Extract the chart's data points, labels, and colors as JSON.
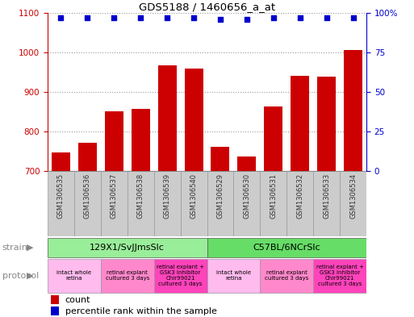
{
  "title": "GDS5188 / 1460656_a_at",
  "samples": [
    "GSM1306535",
    "GSM1306536",
    "GSM1306537",
    "GSM1306538",
    "GSM1306539",
    "GSM1306540",
    "GSM1306529",
    "GSM1306530",
    "GSM1306531",
    "GSM1306532",
    "GSM1306533",
    "GSM1306534"
  ],
  "counts": [
    748,
    771,
    851,
    858,
    968,
    958,
    762,
    738,
    864,
    940,
    938,
    1005
  ],
  "percentiles": [
    97,
    97,
    97,
    97,
    97,
    97,
    96,
    96,
    97,
    97,
    97,
    97
  ],
  "ylim_left": [
    700,
    1100
  ],
  "ylim_right": [
    0,
    100
  ],
  "yticks_left": [
    700,
    800,
    900,
    1000,
    1100
  ],
  "yticks_right": [
    0,
    25,
    50,
    75,
    100
  ],
  "bar_color": "#cc0000",
  "dot_color": "#0000cc",
  "strain_groups": [
    {
      "label": "129X1/SvJJmsSlc",
      "start": 0,
      "end": 5,
      "color": "#99ee99"
    },
    {
      "label": "C57BL/6NCrSlc",
      "start": 6,
      "end": 11,
      "color": "#66dd66"
    }
  ],
  "protocol_groups": [
    {
      "label": "intact whole\nretina",
      "start": 0,
      "end": 1,
      "color": "#ffbbee"
    },
    {
      "label": "retinal explant\ncultured 3 days",
      "start": 2,
      "end": 3,
      "color": "#ff88cc"
    },
    {
      "label": "retinal explant +\nGSK3 inhibitor\nChir99021\ncultured 3 days",
      "start": 4,
      "end": 5,
      "color": "#ff44bb"
    },
    {
      "label": "intact whole\nretina",
      "start": 6,
      "end": 7,
      "color": "#ffbbee"
    },
    {
      "label": "retinal explant\ncultured 3 days",
      "start": 8,
      "end": 9,
      "color": "#ff88cc"
    },
    {
      "label": "retinal explant +\nGSK3 inhibitor\nChir99021\ncultured 3 days",
      "start": 10,
      "end": 11,
      "color": "#ff44bb"
    }
  ],
  "bg_color": "#ffffff",
  "grid_color": "#999999",
  "left_axis_color": "#cc0000",
  "right_axis_color": "#0000cc",
  "label_color": "#888888",
  "sample_box_color": "#cccccc",
  "sample_text_color": "#333333"
}
